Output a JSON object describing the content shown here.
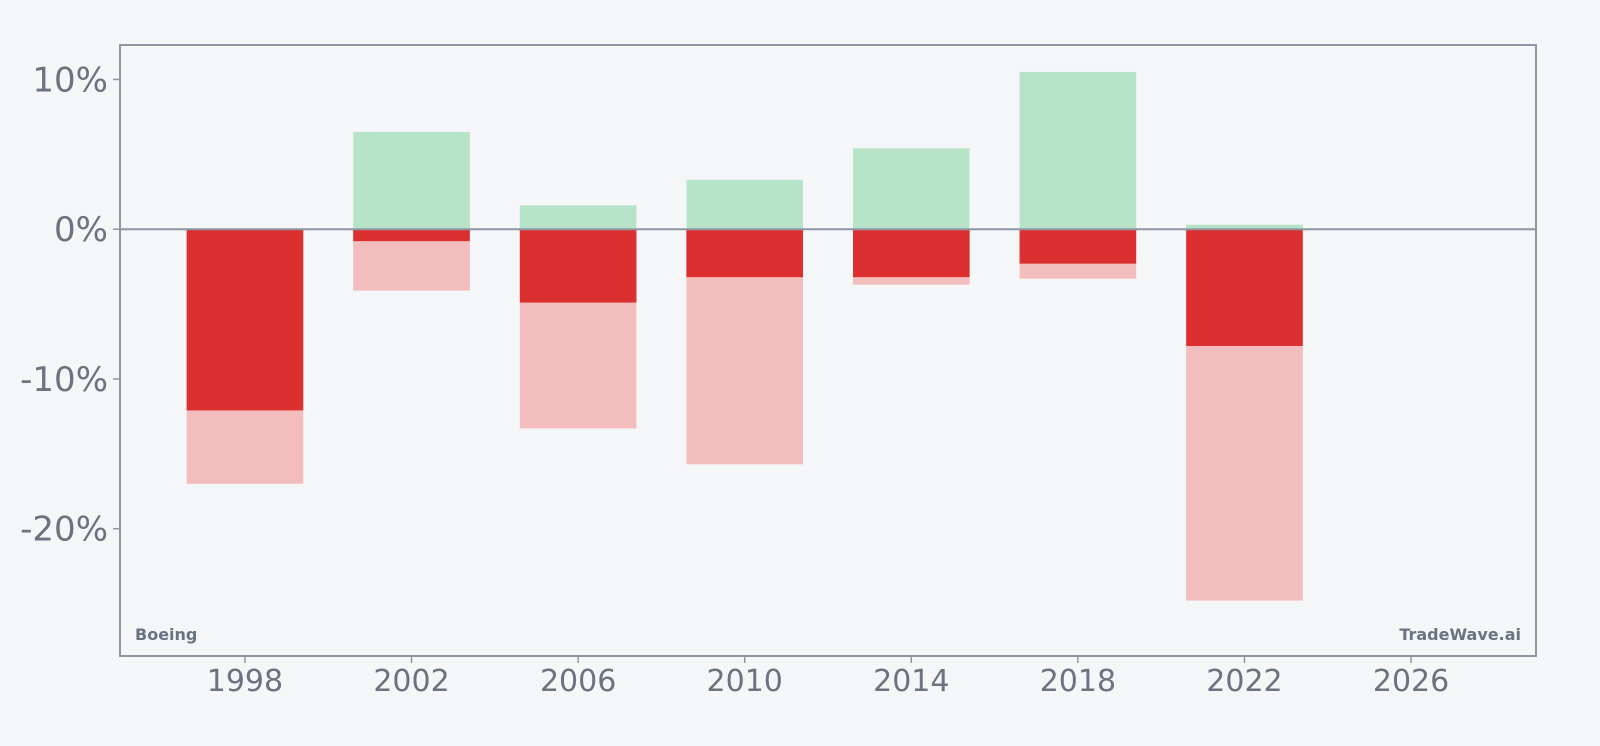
{
  "chart_data": {
    "type": "bar",
    "title": "",
    "xlabel": "",
    "ylabel": "",
    "ticker_label": "Boeing",
    "watermark": "TradeWave.ai",
    "xlim": [
      1995,
      2029
    ],
    "ylim": [
      -28.5,
      12.3
    ],
    "x_ticks": [
      1998,
      2002,
      2006,
      2010,
      2014,
      2018,
      2022,
      2026
    ],
    "y_ticks": [
      10,
      0,
      -10,
      -20
    ],
    "y_tick_labels": [
      "10%",
      "0%",
      "-10%",
      "-20%"
    ],
    "bar_width_years": 2.8,
    "grid": false,
    "legend": "none",
    "colors": {
      "max_gain": "#b7e4c9",
      "close_return": "#dc3030",
      "max_drawdown": "#f3bdbd",
      "zero_line": "#8e96a4",
      "axes": "#8e96a4",
      "text": "#6b7280",
      "background": "#f4f6f8"
    },
    "x": [
      1998,
      2002,
      2006,
      2010,
      2014,
      2018,
      2022
    ],
    "max_gain": [
      0.0,
      6.5,
      1.6,
      3.3,
      5.4,
      10.5,
      0.3
    ],
    "close_return": [
      -12.1,
      -0.8,
      -4.9,
      -3.2,
      -3.2,
      -2.3,
      -7.8
    ],
    "max_drawdown": [
      -17.0,
      -4.1,
      -13.3,
      -15.7,
      -3.7,
      -3.3,
      -24.8
    ]
  }
}
